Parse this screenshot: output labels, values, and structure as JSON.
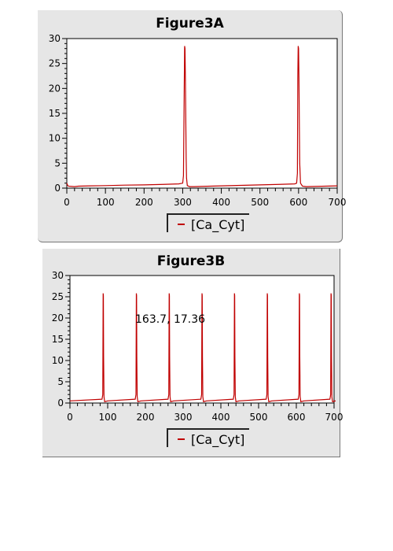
{
  "figure_a": {
    "title": "Figure3A",
    "legend_label": "[Ca_Cyt]"
  },
  "figure_b": {
    "title": "Figure3B",
    "legend_label": "[Ca_Cyt]",
    "cursor_readout": "163.7, 17.36"
  },
  "colors": {
    "series": "#c00000",
    "panel": "#e6e6e6",
    "plot_bg": "#ffffff"
  },
  "chart_data": [
    {
      "type": "line",
      "title": "Figure3A",
      "xlabel": "",
      "ylabel": "",
      "xlim": [
        0,
        700
      ],
      "ylim": [
        0,
        30
      ],
      "xticks": [
        0,
        100,
        200,
        300,
        400,
        500,
        600,
        700
      ],
      "yticks": [
        0,
        5,
        10,
        15,
        20,
        25,
        30
      ],
      "grid": false,
      "legend": "bottom-center",
      "series": [
        {
          "name": "[Ca_Cyt]",
          "x": [
            0,
            2,
            4,
            20,
            30,
            60,
            100,
            150,
            200,
            250,
            290,
            300,
            302,
            304,
            305,
            306,
            307,
            308,
            309,
            310,
            312,
            318,
            330,
            400,
            450,
            500,
            550,
            590,
            595,
            597,
            598,
            599,
            600,
            601,
            602,
            603,
            605,
            610,
            620,
            650,
            700
          ],
          "y": [
            1.0,
            0.6,
            0.4,
            0.3,
            0.4,
            0.45,
            0.5,
            0.6,
            0.65,
            0.75,
            0.85,
            1.0,
            2.5,
            20.0,
            28.5,
            28.0,
            22.0,
            14.0,
            6.0,
            2.0,
            0.5,
            0.3,
            0.3,
            0.45,
            0.55,
            0.65,
            0.75,
            0.85,
            1.0,
            3.0,
            22.0,
            28.5,
            28.0,
            22.0,
            13.0,
            5.0,
            1.0,
            0.4,
            0.3,
            0.35,
            0.45
          ]
        }
      ]
    },
    {
      "type": "line",
      "title": "Figure3B",
      "xlabel": "",
      "ylabel": "",
      "xlim": [
        0,
        700
      ],
      "ylim": [
        0,
        30
      ],
      "xticks": [
        0,
        100,
        200,
        300,
        400,
        500,
        600,
        700
      ],
      "yticks": [
        0,
        5,
        10,
        15,
        20,
        25,
        30
      ],
      "grid": false,
      "legend": "bottom-center",
      "spike_peak": 25.8,
      "spike_times": [
        88,
        176,
        263,
        350,
        436,
        523,
        608,
        692
      ],
      "baseline": 0.5,
      "series": [
        {
          "name": "[Ca_Cyt]"
        }
      ]
    }
  ]
}
